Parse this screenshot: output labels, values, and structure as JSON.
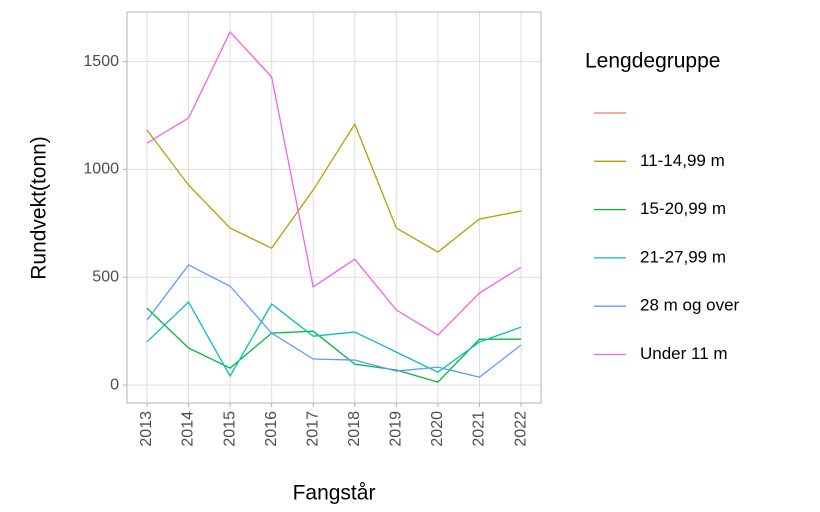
{
  "chart_data": {
    "type": "line",
    "x_label": "Fangstår",
    "y_label": "Rundvekt(tonn)",
    "legend_title": "Lengdegruppe",
    "x": [
      2013,
      2014,
      2015,
      2016,
      2017,
      2018,
      2019,
      2020,
      2021,
      2022
    ],
    "xlim": [
      2012.52,
      2022.48
    ],
    "xticks": [
      2013,
      2014,
      2015,
      2016,
      2017,
      2018,
      2019,
      2020,
      2021,
      2022
    ],
    "ylim": [
      -83,
      1730
    ],
    "yticks": [
      0,
      500,
      1000,
      1500
    ],
    "grid": true,
    "legend": "right",
    "series": [
      {
        "name": null,
        "color": "#F8766D",
        "values": [
          null,
          null,
          null,
          null,
          null,
          null,
          null,
          null,
          null,
          null
        ]
      },
      {
        "name": "11-14,99 m",
        "color": "#B79F00",
        "values": [
          1183,
          928,
          728,
          635,
          905,
          1210,
          728,
          617,
          770,
          807
        ]
      },
      {
        "name": "15-20,99 m",
        "color": "#00BA38",
        "values": [
          357,
          172,
          79,
          241,
          250,
          97,
          70,
          14,
          213,
          213
        ]
      },
      {
        "name": "21-27,99 m",
        "color": "#00BFC4",
        "values": [
          200,
          385,
          42,
          376,
          227,
          246,
          153,
          60,
          200,
          269
        ]
      },
      {
        "name": "28 m og over",
        "color": "#619CFF",
        "values": [
          301,
          557,
          459,
          241,
          121,
          116,
          65,
          83,
          37,
          186
        ]
      },
      {
        "name": "Under 11 m",
        "color": "#F564E3",
        "values": [
          1122,
          1238,
          1637,
          1429,
          455,
          584,
          348,
          232,
          427,
          547
        ]
      }
    ]
  }
}
